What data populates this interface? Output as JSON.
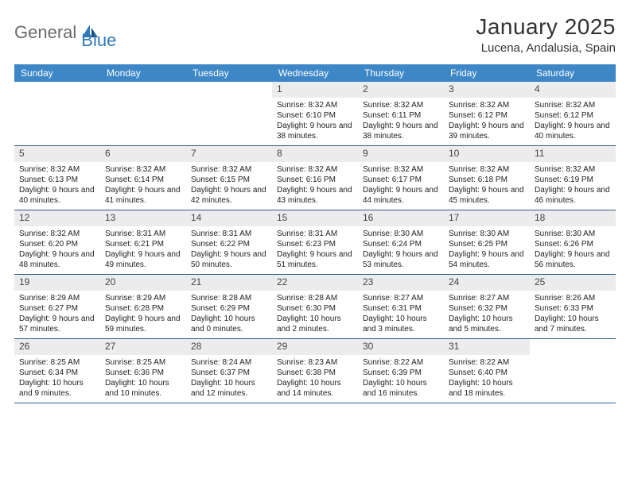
{
  "brand": {
    "text1": "General",
    "text2": "Blue",
    "color1": "#6a6a6a",
    "color2": "#2f79b9"
  },
  "title": "January 2025",
  "location": "Lucena, Andalusia, Spain",
  "colors": {
    "header_bg": "#3d87c7",
    "header_text": "#ffffff",
    "daynum_bg": "#ececec",
    "border": "#2f5d88",
    "background": "#ffffff"
  },
  "day_names": [
    "Sunday",
    "Monday",
    "Tuesday",
    "Wednesday",
    "Thursday",
    "Friday",
    "Saturday"
  ],
  "weeks": [
    [
      {
        "n": "",
        "empty": true
      },
      {
        "n": "",
        "empty": true
      },
      {
        "n": "",
        "empty": true
      },
      {
        "n": "1",
        "sunrise": "Sunrise: 8:32 AM",
        "sunset": "Sunset: 6:10 PM",
        "daylight": "Daylight: 9 hours and 38 minutes."
      },
      {
        "n": "2",
        "sunrise": "Sunrise: 8:32 AM",
        "sunset": "Sunset: 6:11 PM",
        "daylight": "Daylight: 9 hours and 38 minutes."
      },
      {
        "n": "3",
        "sunrise": "Sunrise: 8:32 AM",
        "sunset": "Sunset: 6:12 PM",
        "daylight": "Daylight: 9 hours and 39 minutes."
      },
      {
        "n": "4",
        "sunrise": "Sunrise: 8:32 AM",
        "sunset": "Sunset: 6:12 PM",
        "daylight": "Daylight: 9 hours and 40 minutes."
      }
    ],
    [
      {
        "n": "5",
        "sunrise": "Sunrise: 8:32 AM",
        "sunset": "Sunset: 6:13 PM",
        "daylight": "Daylight: 9 hours and 40 minutes."
      },
      {
        "n": "6",
        "sunrise": "Sunrise: 8:32 AM",
        "sunset": "Sunset: 6:14 PM",
        "daylight": "Daylight: 9 hours and 41 minutes."
      },
      {
        "n": "7",
        "sunrise": "Sunrise: 8:32 AM",
        "sunset": "Sunset: 6:15 PM",
        "daylight": "Daylight: 9 hours and 42 minutes."
      },
      {
        "n": "8",
        "sunrise": "Sunrise: 8:32 AM",
        "sunset": "Sunset: 6:16 PM",
        "daylight": "Daylight: 9 hours and 43 minutes."
      },
      {
        "n": "9",
        "sunrise": "Sunrise: 8:32 AM",
        "sunset": "Sunset: 6:17 PM",
        "daylight": "Daylight: 9 hours and 44 minutes."
      },
      {
        "n": "10",
        "sunrise": "Sunrise: 8:32 AM",
        "sunset": "Sunset: 6:18 PM",
        "daylight": "Daylight: 9 hours and 45 minutes."
      },
      {
        "n": "11",
        "sunrise": "Sunrise: 8:32 AM",
        "sunset": "Sunset: 6:19 PM",
        "daylight": "Daylight: 9 hours and 46 minutes."
      }
    ],
    [
      {
        "n": "12",
        "sunrise": "Sunrise: 8:32 AM",
        "sunset": "Sunset: 6:20 PM",
        "daylight": "Daylight: 9 hours and 48 minutes."
      },
      {
        "n": "13",
        "sunrise": "Sunrise: 8:31 AM",
        "sunset": "Sunset: 6:21 PM",
        "daylight": "Daylight: 9 hours and 49 minutes."
      },
      {
        "n": "14",
        "sunrise": "Sunrise: 8:31 AM",
        "sunset": "Sunset: 6:22 PM",
        "daylight": "Daylight: 9 hours and 50 minutes."
      },
      {
        "n": "15",
        "sunrise": "Sunrise: 8:31 AM",
        "sunset": "Sunset: 6:23 PM",
        "daylight": "Daylight: 9 hours and 51 minutes."
      },
      {
        "n": "16",
        "sunrise": "Sunrise: 8:30 AM",
        "sunset": "Sunset: 6:24 PM",
        "daylight": "Daylight: 9 hours and 53 minutes."
      },
      {
        "n": "17",
        "sunrise": "Sunrise: 8:30 AM",
        "sunset": "Sunset: 6:25 PM",
        "daylight": "Daylight: 9 hours and 54 minutes."
      },
      {
        "n": "18",
        "sunrise": "Sunrise: 8:30 AM",
        "sunset": "Sunset: 6:26 PM",
        "daylight": "Daylight: 9 hours and 56 minutes."
      }
    ],
    [
      {
        "n": "19",
        "sunrise": "Sunrise: 8:29 AM",
        "sunset": "Sunset: 6:27 PM",
        "daylight": "Daylight: 9 hours and 57 minutes."
      },
      {
        "n": "20",
        "sunrise": "Sunrise: 8:29 AM",
        "sunset": "Sunset: 6:28 PM",
        "daylight": "Daylight: 9 hours and 59 minutes."
      },
      {
        "n": "21",
        "sunrise": "Sunrise: 8:28 AM",
        "sunset": "Sunset: 6:29 PM",
        "daylight": "Daylight: 10 hours and 0 minutes."
      },
      {
        "n": "22",
        "sunrise": "Sunrise: 8:28 AM",
        "sunset": "Sunset: 6:30 PM",
        "daylight": "Daylight: 10 hours and 2 minutes."
      },
      {
        "n": "23",
        "sunrise": "Sunrise: 8:27 AM",
        "sunset": "Sunset: 6:31 PM",
        "daylight": "Daylight: 10 hours and 3 minutes."
      },
      {
        "n": "24",
        "sunrise": "Sunrise: 8:27 AM",
        "sunset": "Sunset: 6:32 PM",
        "daylight": "Daylight: 10 hours and 5 minutes."
      },
      {
        "n": "25",
        "sunrise": "Sunrise: 8:26 AM",
        "sunset": "Sunset: 6:33 PM",
        "daylight": "Daylight: 10 hours and 7 minutes."
      }
    ],
    [
      {
        "n": "26",
        "sunrise": "Sunrise: 8:25 AM",
        "sunset": "Sunset: 6:34 PM",
        "daylight": "Daylight: 10 hours and 9 minutes."
      },
      {
        "n": "27",
        "sunrise": "Sunrise: 8:25 AM",
        "sunset": "Sunset: 6:36 PM",
        "daylight": "Daylight: 10 hours and 10 minutes."
      },
      {
        "n": "28",
        "sunrise": "Sunrise: 8:24 AM",
        "sunset": "Sunset: 6:37 PM",
        "daylight": "Daylight: 10 hours and 12 minutes."
      },
      {
        "n": "29",
        "sunrise": "Sunrise: 8:23 AM",
        "sunset": "Sunset: 6:38 PM",
        "daylight": "Daylight: 10 hours and 14 minutes."
      },
      {
        "n": "30",
        "sunrise": "Sunrise: 8:22 AM",
        "sunset": "Sunset: 6:39 PM",
        "daylight": "Daylight: 10 hours and 16 minutes."
      },
      {
        "n": "31",
        "sunrise": "Sunrise: 8:22 AM",
        "sunset": "Sunset: 6:40 PM",
        "daylight": "Daylight: 10 hours and 18 minutes."
      },
      {
        "n": "",
        "empty": true
      }
    ]
  ]
}
